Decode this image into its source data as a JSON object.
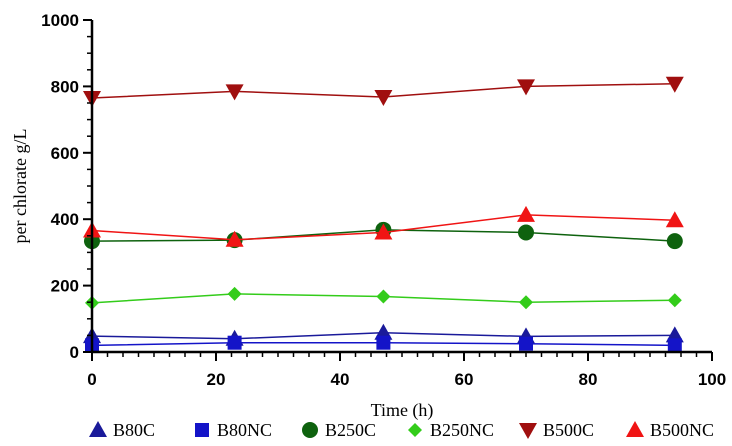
{
  "chart_data": {
    "type": "line",
    "title": "",
    "xlabel": "Time (h)",
    "ylabel": "per chlorate g/L",
    "xlim": [
      0,
      100
    ],
    "ylim": [
      0,
      1000
    ],
    "xticks": [
      0,
      20,
      40,
      60,
      80,
      100
    ],
    "yticks": [
      0,
      200,
      400,
      600,
      800,
      1000
    ],
    "x": [
      0,
      23,
      47,
      70,
      94
    ],
    "grid": false,
    "legend_position": "bottom",
    "series": [
      {
        "name": "B80C",
        "marker": "triangle-up",
        "color": "#1a1a9a",
        "values": [
          48,
          40,
          58,
          47,
          50
        ]
      },
      {
        "name": "B80NC",
        "marker": "square",
        "color": "#1414c8",
        "values": [
          20,
          28,
          28,
          25,
          20
        ]
      },
      {
        "name": "B250C",
        "marker": "circle",
        "color": "#0e620e",
        "values": [
          334,
          337,
          368,
          360,
          334
        ]
      },
      {
        "name": "B250NC",
        "marker": "diamond",
        "color": "#33cc1a",
        "values": [
          148,
          175,
          167,
          150,
          156
        ]
      },
      {
        "name": "B500C",
        "marker": "triangle-down",
        "color": "#a00f0f",
        "values": [
          765,
          785,
          768,
          800,
          808
        ]
      },
      {
        "name": "B500NC",
        "marker": "triangle-up",
        "color": "#f01414",
        "values": [
          366,
          338,
          360,
          413,
          397
        ]
      }
    ]
  }
}
